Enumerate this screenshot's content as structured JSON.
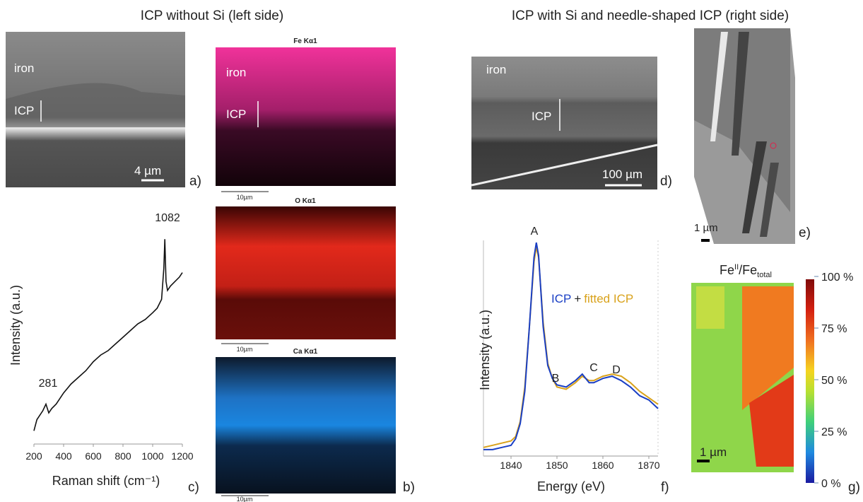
{
  "headings": {
    "left": "ICP without Si (left side)",
    "right": "ICP with Si and needle-shaped ICP (right side)"
  },
  "panels": {
    "a": {
      "label": "a)",
      "texts": [
        "iron",
        "ICP"
      ],
      "scale_bar": "4 µm"
    },
    "b": {
      "label": "b)",
      "maps": [
        {
          "title": "Fe Kα1",
          "texts": [
            "iron",
            "ICP"
          ],
          "scale_bar": "10µm"
        },
        {
          "title": "O Kα1",
          "scale_bar": "10µm"
        },
        {
          "title": "Ca Kα1",
          "scale_bar": "10µm"
        }
      ]
    },
    "c": {
      "label": "c)"
    },
    "d": {
      "label": "d)",
      "texts": [
        "iron",
        "ICP"
      ],
      "scale_bar": "100 µm"
    },
    "e": {
      "label": "e)",
      "scale_bar": "1 µm"
    },
    "f": {
      "label": "f)"
    },
    "g": {
      "label": "g)",
      "title": [
        "Fe",
        "II",
        "/Fe",
        "total"
      ],
      "scale_bar": "1 µm",
      "colorbar": {
        "lim": [
          0,
          100
        ],
        "ticks": [
          {
            "value": 100,
            "label": "100 %"
          },
          {
            "value": 75,
            "label": "75 %"
          },
          {
            "value": 50,
            "label": "50 %"
          },
          {
            "value": 25,
            "label": "25 %"
          },
          {
            "value": 0,
            "label": "0 %"
          }
        ]
      }
    }
  },
  "chart_data": [
    {
      "type": "line",
      "xlabel": "Raman shift (cm⁻¹)",
      "ylabel": "Intensity (a.u.)",
      "color": "#111111",
      "x": [
        200,
        220,
        240,
        260,
        281,
        300,
        320,
        350,
        400,
        450,
        500,
        550,
        600,
        650,
        700,
        750,
        800,
        850,
        900,
        950,
        1000,
        1030,
        1060,
        1075,
        1082,
        1090,
        1100,
        1120,
        1150,
        1180,
        1200
      ],
      "values": [
        0.05,
        0.1,
        0.12,
        0.14,
        0.17,
        0.13,
        0.15,
        0.17,
        0.22,
        0.26,
        0.29,
        0.32,
        0.36,
        0.39,
        0.41,
        0.44,
        0.47,
        0.5,
        0.53,
        0.55,
        0.58,
        0.6,
        0.64,
        0.78,
        0.91,
        0.72,
        0.68,
        0.7,
        0.72,
        0.74,
        0.76
      ],
      "xlim": [
        200,
        1200
      ],
      "xticks": [
        200,
        400,
        600,
        800,
        1000,
        1200
      ],
      "ylim": [
        0,
        1
      ],
      "annotations": [
        "281",
        "1082"
      ]
    },
    {
      "type": "line",
      "xlabel": "Energy (eV)",
      "ylabel": "Intensity (a.u.)",
      "x": [
        1834,
        1836,
        1838,
        1840,
        1841,
        1842,
        1843,
        1844,
        1845,
        1845.5,
        1846,
        1847,
        1848,
        1849,
        1850,
        1852,
        1854,
        1855.5,
        1857,
        1858,
        1860,
        1862,
        1864,
        1866,
        1868,
        1870,
        1872
      ],
      "series": [
        {
          "name": "ICP",
          "color": "#1a3fc4",
          "values": [
            0.03,
            0.03,
            0.04,
            0.05,
            0.08,
            0.15,
            0.3,
            0.6,
            0.92,
            0.99,
            0.93,
            0.6,
            0.42,
            0.36,
            0.33,
            0.32,
            0.35,
            0.38,
            0.34,
            0.34,
            0.36,
            0.37,
            0.35,
            0.32,
            0.28,
            0.26,
            0.22
          ]
        },
        {
          "name": "fitted ICP",
          "color": "#d9a21b",
          "values": [
            0.04,
            0.05,
            0.06,
            0.07,
            0.09,
            0.16,
            0.32,
            0.6,
            0.9,
            0.97,
            0.92,
            0.62,
            0.43,
            0.36,
            0.32,
            0.31,
            0.34,
            0.37,
            0.35,
            0.35,
            0.37,
            0.38,
            0.37,
            0.34,
            0.3,
            0.27,
            0.24
          ]
        }
      ],
      "legend_joiner": "+",
      "xlim": [
        1834,
        1872
      ],
      "xticks": [
        1840,
        1850,
        1860,
        1870
      ],
      "ylim": [
        0,
        1
      ],
      "annotations": [
        "A",
        "B",
        "C",
        "D"
      ]
    }
  ]
}
